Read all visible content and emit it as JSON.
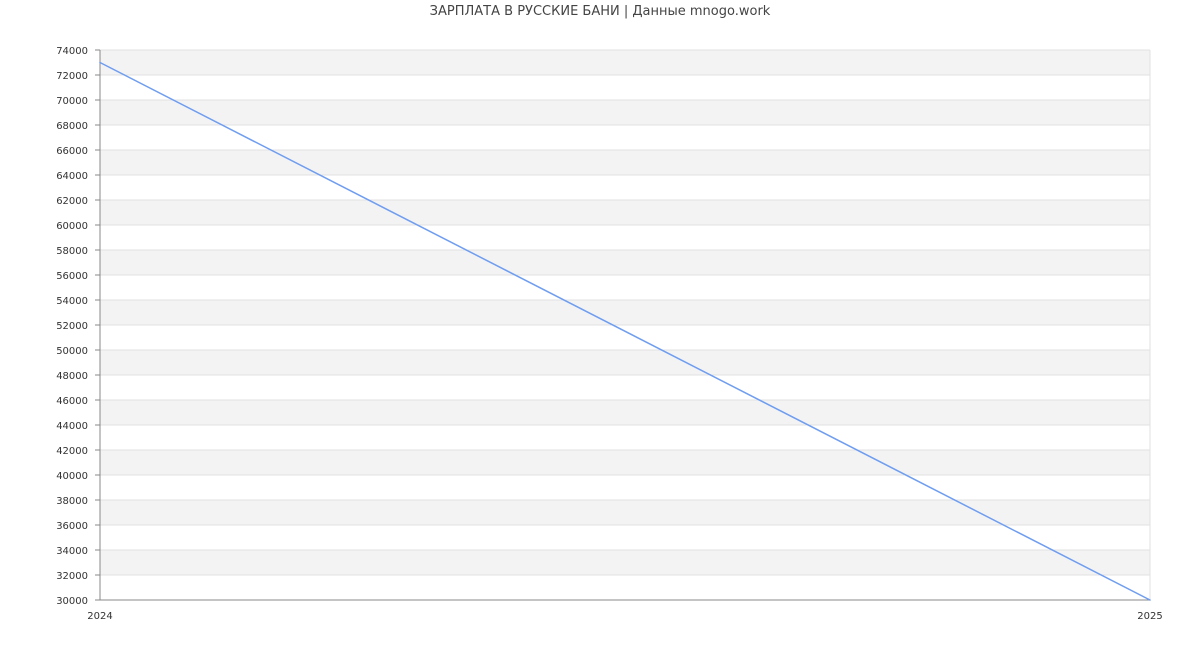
{
  "chart_data": {
    "type": "line",
    "title": "ЗАРПЛАТА В  РУССКИЕ БАНИ | Данные mnogo.work",
    "xlabel": "",
    "ylabel": "",
    "x": [
      "2024",
      "2025"
    ],
    "series": [
      {
        "values": [
          73000,
          30000
        ],
        "color": "#6f9df0"
      }
    ],
    "ylim": [
      30000,
      74000
    ],
    "yticks": [
      30000,
      32000,
      34000,
      36000,
      38000,
      40000,
      42000,
      44000,
      46000,
      48000,
      50000,
      52000,
      54000,
      56000,
      58000,
      60000,
      62000,
      64000,
      66000,
      68000,
      70000,
      72000,
      74000
    ],
    "grid": true,
    "band_colors": [
      "#f3f3f3",
      "#ffffff"
    ],
    "legend": "none"
  }
}
